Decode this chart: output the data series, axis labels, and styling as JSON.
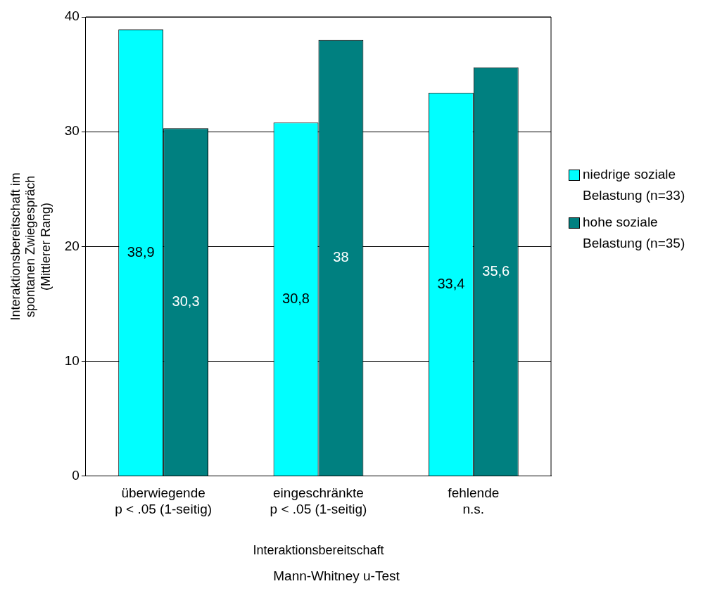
{
  "chart_data": {
    "type": "bar",
    "categories": [
      "überwiegende\np < .05 (1-seitig)",
      "eingeschränkte\np < .05 (1-seitig)",
      "fehlende\nn.s."
    ],
    "series": [
      {
        "name": "niedrige soziale Belastung (n=33)",
        "color": "#00ffff",
        "values": [
          38.9,
          30.8,
          33.4
        ],
        "value_labels": [
          "38,9",
          "30,8",
          "33,4"
        ]
      },
      {
        "name": "hohe soziale Belastung (n=35)",
        "color": "#008080",
        "values": [
          30.3,
          38,
          35.6
        ],
        "value_labels": [
          "30,3",
          "38",
          "35,6"
        ]
      }
    ],
    "xlabel": "Interaktionsbereitschaft",
    "ylabel": "Interaktionsbereitschaft im\nspontanen Zwiegespräch\n(Mittlerer Rang)",
    "ylim": [
      0,
      40
    ],
    "yticks": [
      0,
      10,
      20,
      30,
      40
    ],
    "grid": "y",
    "legend": "right",
    "annotations": [
      "Mann-Whitney u-Test"
    ]
  }
}
